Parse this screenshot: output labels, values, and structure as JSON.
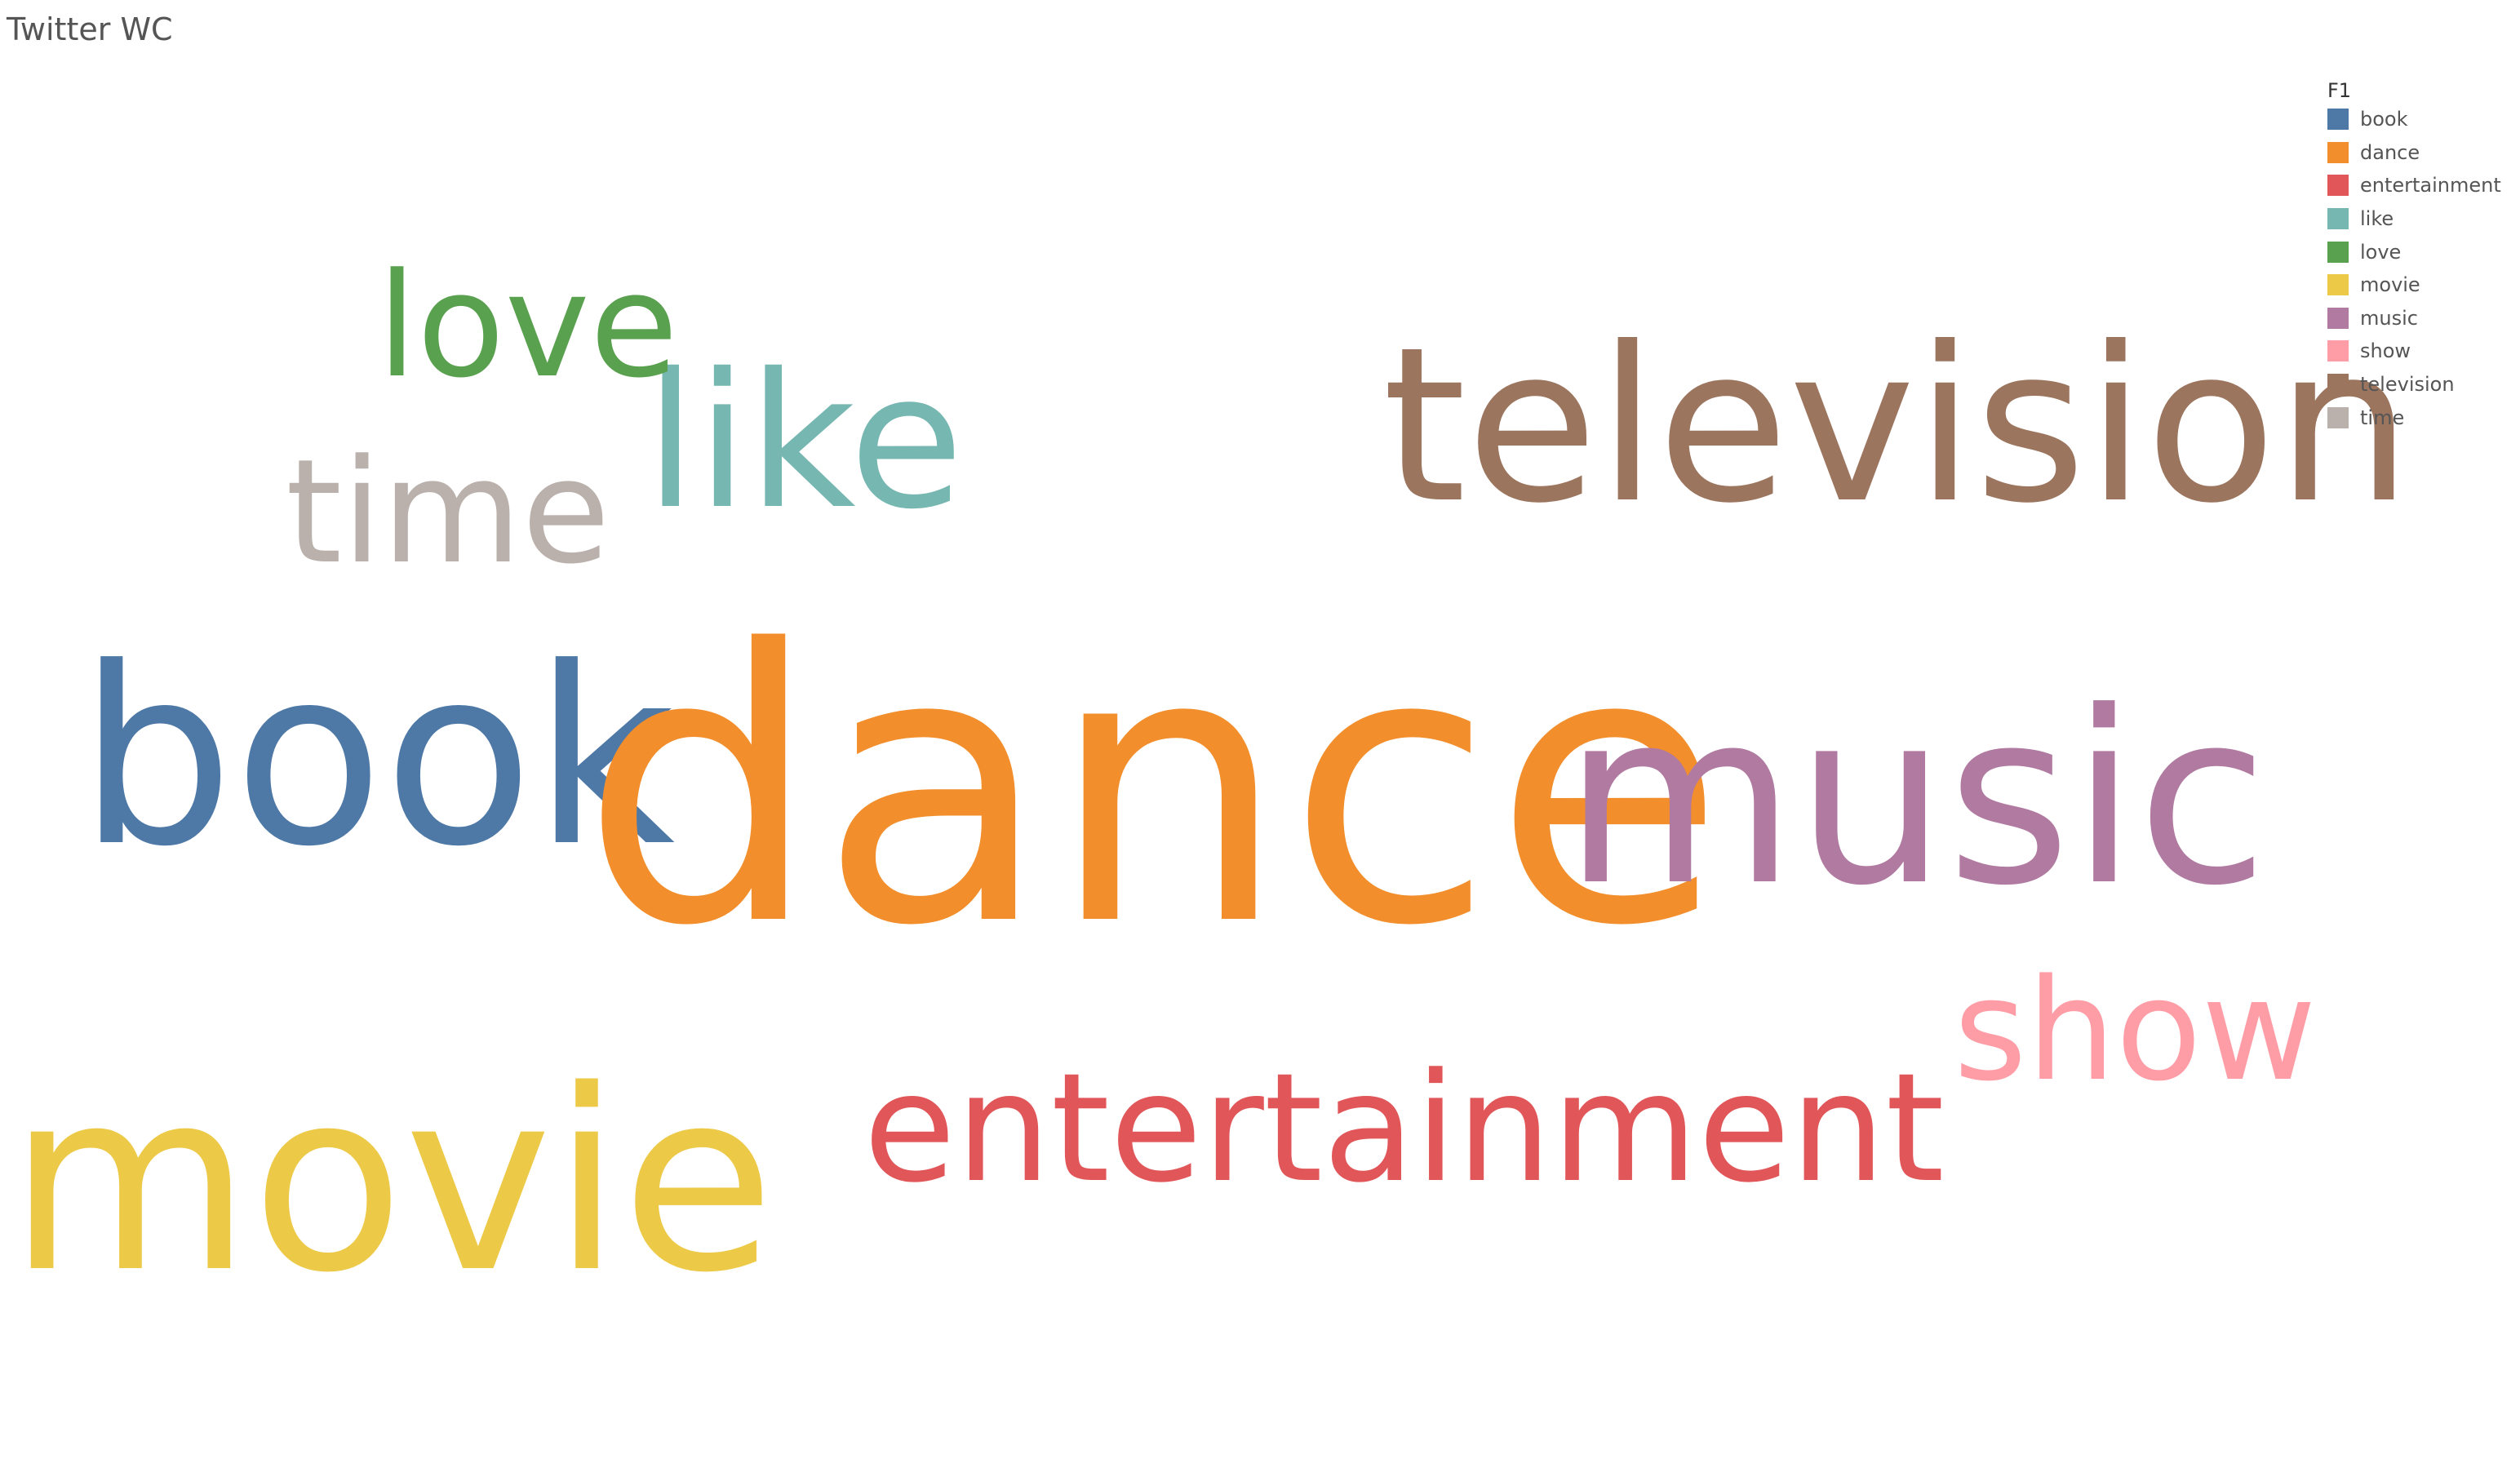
{
  "chart_data": {
    "type": "wordcloud",
    "title": "Twitter WC",
    "legend_title": "F1",
    "legend_position": "top-right",
    "words": [
      {
        "text": "book",
        "color": "#4e79a7"
      },
      {
        "text": "dance",
        "color": "#f28e2b"
      },
      {
        "text": "entertainment",
        "color": "#e15759"
      },
      {
        "text": "like",
        "color": "#76b7b2"
      },
      {
        "text": "love",
        "color": "#59a14f"
      },
      {
        "text": "movie",
        "color": "#edc948"
      },
      {
        "text": "music",
        "color": "#b07aa1"
      },
      {
        "text": "show",
        "color": "#ff9da7"
      },
      {
        "text": "television",
        "color": "#9c755f"
      },
      {
        "text": "time",
        "color": "#bab0ac"
      }
    ]
  }
}
